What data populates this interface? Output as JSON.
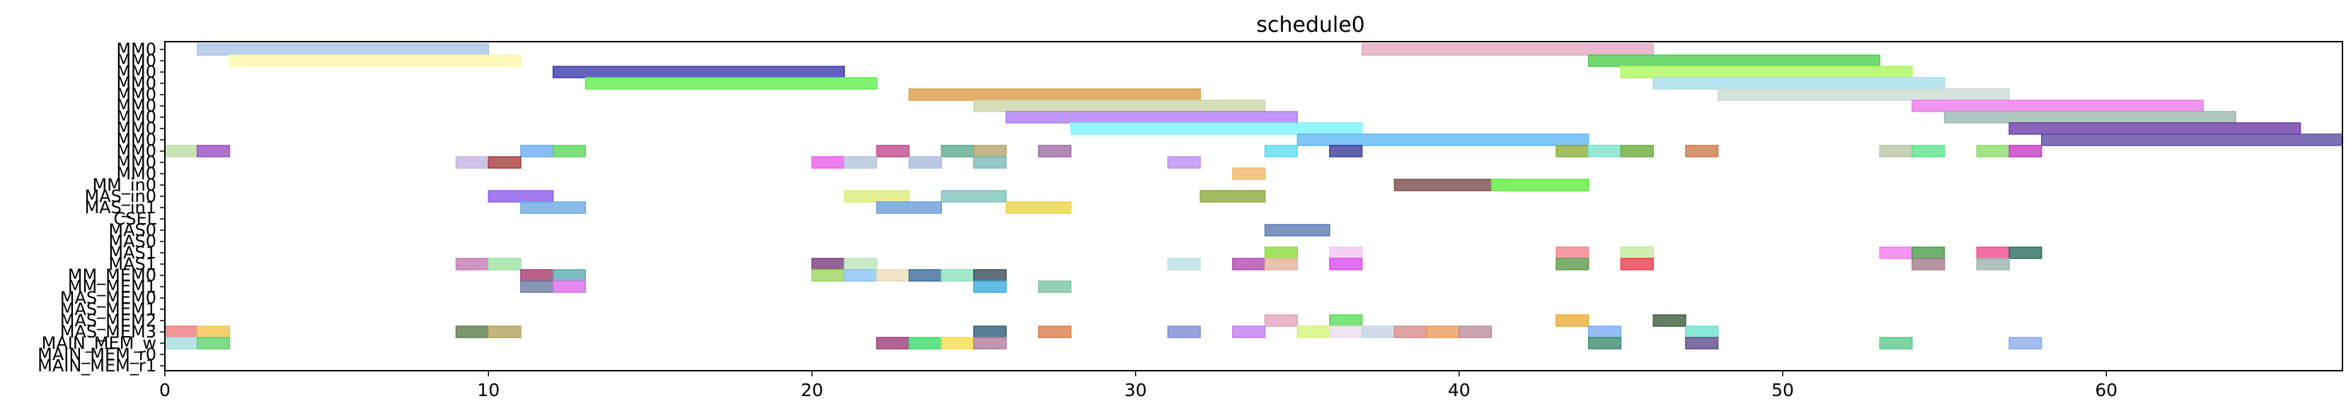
{
  "chart_data": {
    "type": "gantt",
    "title": "schedule0",
    "xlim": [
      0,
      67.3
    ],
    "x_ticks": [
      0,
      10,
      20,
      30,
      40,
      50,
      60
    ],
    "row_labels": [
      "MM0",
      "MM0",
      "MM0",
      "MM0",
      "MM0",
      "MM0",
      "MM0",
      "MM0",
      "MM0",
      "MM0",
      "MM0",
      "MM0",
      "MM_in0",
      "MAS_in0",
      "MAS_in1",
      "CSEL",
      "MAS0",
      "MAS0",
      "MAS1",
      "MAS1",
      "MM_MEM0",
      "MM_MEM1",
      "MAS_MEM0",
      "MAS_MEM1",
      "MAS_MEM2",
      "MAS_MEM3",
      "MAIN_MEM_w",
      "MAIN_MEM_r0",
      "MAIN_MEM_r1"
    ],
    "bars": [
      {
        "row": 0,
        "start": 1,
        "end": 10,
        "color": "#a9c4e6"
      },
      {
        "row": 0,
        "start": 37,
        "end": 46,
        "color": "#e4a8c0"
      },
      {
        "row": 1,
        "start": 2,
        "end": 11,
        "color": "#fdf7a8"
      },
      {
        "row": 1,
        "start": 44,
        "end": 53,
        "color": "#4fcf4f"
      },
      {
        "row": 2,
        "start": 12,
        "end": 21,
        "color": "#3b3bab"
      },
      {
        "row": 2,
        "start": 45,
        "end": 54,
        "color": "#adf75c"
      },
      {
        "row": 3,
        "start": 13,
        "end": 22,
        "color": "#63ef4f"
      },
      {
        "row": 3,
        "start": 46,
        "end": 55,
        "color": "#a9dcec"
      },
      {
        "row": 4,
        "start": 23,
        "end": 32,
        "color": "#dc9c4c"
      },
      {
        "row": 4,
        "start": 48,
        "end": 57,
        "color": "#cbdcd4"
      },
      {
        "row": 5,
        "start": 25,
        "end": 34,
        "color": "#cbd7a6"
      },
      {
        "row": 5,
        "start": 54,
        "end": 63,
        "color": "#ec7cec"
      },
      {
        "row": 6,
        "start": 26,
        "end": 35,
        "color": "#ad7cf4"
      },
      {
        "row": 6,
        "start": 55,
        "end": 64,
        "color": "#9cb8b0"
      },
      {
        "row": 7,
        "start": 28,
        "end": 37,
        "color": "#7cf4fc"
      },
      {
        "row": 7,
        "start": 57,
        "end": 66,
        "color": "#6c3ca8"
      },
      {
        "row": 8,
        "start": 35,
        "end": 44,
        "color": "#5cb8f4"
      },
      {
        "row": 8,
        "start": 58,
        "end": 67.3,
        "color": "#5c4ca4"
      },
      {
        "row": 9,
        "start": 0,
        "end": 1,
        "color": "#b8dca4"
      },
      {
        "row": 9,
        "start": 1,
        "end": 2,
        "color": "#9c4cc0"
      },
      {
        "row": 9,
        "start": 11,
        "end": 12,
        "color": "#6cacf4"
      },
      {
        "row": 9,
        "start": 12,
        "end": 13,
        "color": "#5cd85c"
      },
      {
        "row": 9,
        "start": 22,
        "end": 23,
        "color": "#c04c8c"
      },
      {
        "row": 9,
        "start": 24,
        "end": 25,
        "color": "#5cac8c"
      },
      {
        "row": 9,
        "start": 25,
        "end": 26,
        "color": "#b4a46c"
      },
      {
        "row": 9,
        "start": 27,
        "end": 28,
        "color": "#9c6ca4"
      },
      {
        "row": 9,
        "start": 34,
        "end": 35,
        "color": "#5cdcec"
      },
      {
        "row": 9,
        "start": 36,
        "end": 37,
        "color": "#3c3c9c"
      },
      {
        "row": 9,
        "start": 43,
        "end": 44,
        "color": "#8cac3c"
      },
      {
        "row": 9,
        "start": 44,
        "end": 45,
        "color": "#7ce4cc"
      },
      {
        "row": 9,
        "start": 45,
        "end": 46,
        "color": "#6cac3c"
      },
      {
        "row": 9,
        "start": 47,
        "end": 48,
        "color": "#cc7c4c"
      },
      {
        "row": 9,
        "start": 53,
        "end": 54,
        "color": "#b8c4a4"
      },
      {
        "row": 9,
        "start": 54,
        "end": 55,
        "color": "#5ce48c"
      },
      {
        "row": 9,
        "start": 56,
        "end": 57,
        "color": "#8cdc6c"
      },
      {
        "row": 9,
        "start": 57,
        "end": 58,
        "color": "#c43cc4"
      },
      {
        "row": 10,
        "start": 9,
        "end": 10,
        "color": "#c4b4e4"
      },
      {
        "row": 10,
        "start": 10,
        "end": 11,
        "color": "#a43c3c"
      },
      {
        "row": 10,
        "start": 20,
        "end": 21,
        "color": "#ec5cec"
      },
      {
        "row": 10,
        "start": 21,
        "end": 22,
        "color": "#b4c4dc"
      },
      {
        "row": 10,
        "start": 23,
        "end": 24,
        "color": "#acbcdc"
      },
      {
        "row": 10,
        "start": 25,
        "end": 26,
        "color": "#7cb8b8"
      },
      {
        "row": 10,
        "start": 31,
        "end": 32,
        "color": "#bc8cf4"
      },
      {
        "row": 11,
        "start": 33,
        "end": 34,
        "color": "#f4b86c"
      },
      {
        "row": 12,
        "start": 38,
        "end": 41,
        "color": "#7c4c4c"
      },
      {
        "row": 12,
        "start": 41,
        "end": 44,
        "color": "#5cec3c"
      },
      {
        "row": 13,
        "start": 10,
        "end": 12,
        "color": "#8c5cec"
      },
      {
        "row": 13,
        "start": 21,
        "end": 23,
        "color": "#dcec7c"
      },
      {
        "row": 13,
        "start": 24,
        "end": 26,
        "color": "#7cc4bc"
      },
      {
        "row": 13,
        "start": 32,
        "end": 34,
        "color": "#8caa3c"
      },
      {
        "row": 14,
        "start": 11,
        "end": 13,
        "color": "#6caae4"
      },
      {
        "row": 14,
        "start": 22,
        "end": 24,
        "color": "#6c9cdc"
      },
      {
        "row": 14,
        "start": 26,
        "end": 28,
        "color": "#ecd44c"
      },
      {
        "row": 16,
        "start": 34,
        "end": 36,
        "color": "#5c7cb4"
      },
      {
        "row": 18,
        "start": 34,
        "end": 35,
        "color": "#8cdc3c"
      },
      {
        "row": 18,
        "start": 36,
        "end": 37,
        "color": "#f4c4f4"
      },
      {
        "row": 18,
        "start": 43,
        "end": 44,
        "color": "#f4848c"
      },
      {
        "row": 18,
        "start": 45,
        "end": 46,
        "color": "#c4ec9c"
      },
      {
        "row": 18,
        "start": 53,
        "end": 54,
        "color": "#f47cec"
      },
      {
        "row": 18,
        "start": 54,
        "end": 55,
        "color": "#4c9c4c"
      },
      {
        "row": 18,
        "start": 56,
        "end": 57,
        "color": "#ec4c8c"
      },
      {
        "row": 18,
        "start": 57,
        "end": 58,
        "color": "#2c6c5c"
      },
      {
        "row": 19,
        "start": 9,
        "end": 10,
        "color": "#c47cb4"
      },
      {
        "row": 19,
        "start": 10,
        "end": 11,
        "color": "#9ce4a4"
      },
      {
        "row": 19,
        "start": 20,
        "end": 21,
        "color": "#7c3c7c"
      },
      {
        "row": 19,
        "start": 21,
        "end": 22,
        "color": "#bce4bc"
      },
      {
        "row": 19,
        "start": 31,
        "end": 32,
        "color": "#bce0e4"
      },
      {
        "row": 19,
        "start": 33,
        "end": 34,
        "color": "#b44cb4"
      },
      {
        "row": 19,
        "start": 34,
        "end": 35,
        "color": "#e4b49c"
      },
      {
        "row": 19,
        "start": 36,
        "end": 37,
        "color": "#dc4cec"
      },
      {
        "row": 19,
        "start": 43,
        "end": 44,
        "color": "#5c9c4c"
      },
      {
        "row": 19,
        "start": 45,
        "end": 46,
        "color": "#ec3c4c"
      },
      {
        "row": 19,
        "start": 54,
        "end": 55,
        "color": "#a47c8c"
      },
      {
        "row": 19,
        "start": 56,
        "end": 57,
        "color": "#9cb4ac"
      },
      {
        "row": 20,
        "start": 11,
        "end": 12,
        "color": "#a43c6c"
      },
      {
        "row": 20,
        "start": 12,
        "end": 13,
        "color": "#5cacb4"
      },
      {
        "row": 20,
        "start": 20,
        "end": 21,
        "color": "#9cd45c"
      },
      {
        "row": 20,
        "start": 21,
        "end": 22,
        "color": "#8cc4f4"
      },
      {
        "row": 20,
        "start": 22,
        "end": 23,
        "color": "#ecdcb4"
      },
      {
        "row": 20,
        "start": 23,
        "end": 24,
        "color": "#3c6c9c"
      },
      {
        "row": 20,
        "start": 24,
        "end": 25,
        "color": "#8ce4bc"
      },
      {
        "row": 20,
        "start": 25,
        "end": 26,
        "color": "#3c4c5c"
      },
      {
        "row": 21,
        "start": 11,
        "end": 12,
        "color": "#6c7ca4"
      },
      {
        "row": 21,
        "start": 12,
        "end": 13,
        "color": "#dc6cec"
      },
      {
        "row": 21,
        "start": 25,
        "end": 26,
        "color": "#3cacdc"
      },
      {
        "row": 21,
        "start": 27,
        "end": 28,
        "color": "#7cc4a4"
      },
      {
        "row": 24,
        "start": 34,
        "end": 35,
        "color": "#e4a4bc"
      },
      {
        "row": 24,
        "start": 36,
        "end": 37,
        "color": "#5cdc5c"
      },
      {
        "row": 24,
        "start": 43,
        "end": 44,
        "color": "#ecac3c"
      },
      {
        "row": 24,
        "start": 46,
        "end": 47,
        "color": "#3c5c3c"
      },
      {
        "row": 25,
        "start": 0,
        "end": 1,
        "color": "#ec7c7c"
      },
      {
        "row": 25,
        "start": 1,
        "end": 2,
        "color": "#f4c44c"
      },
      {
        "row": 25,
        "start": 9,
        "end": 10,
        "color": "#5c7c4c"
      },
      {
        "row": 25,
        "start": 10,
        "end": 11,
        "color": "#b4a45c"
      },
      {
        "row": 25,
        "start": 25,
        "end": 26,
        "color": "#2c5c7c"
      },
      {
        "row": 25,
        "start": 27,
        "end": 28,
        "color": "#dc7c4c"
      },
      {
        "row": 25,
        "start": 31,
        "end": 32,
        "color": "#7c8cd4"
      },
      {
        "row": 25,
        "start": 33,
        "end": 34,
        "color": "#c47cf4"
      },
      {
        "row": 25,
        "start": 35,
        "end": 36,
        "color": "#d4f47c"
      },
      {
        "row": 25,
        "start": 36,
        "end": 37,
        "color": "#ecdcec"
      },
      {
        "row": 25,
        "start": 37,
        "end": 38,
        "color": "#c4d4e4"
      },
      {
        "row": 25,
        "start": 38,
        "end": 39,
        "color": "#d48c8c"
      },
      {
        "row": 25,
        "start": 39,
        "end": 40,
        "color": "#ec9c5c"
      },
      {
        "row": 25,
        "start": 40,
        "end": 41,
        "color": "#bc8c9c"
      },
      {
        "row": 25,
        "start": 44,
        "end": 45,
        "color": "#7cacf4"
      },
      {
        "row": 25,
        "start": 47,
        "end": 48,
        "color": "#6ce4cc"
      },
      {
        "row": 26,
        "start": 0,
        "end": 1,
        "color": "#a4dcdc"
      },
      {
        "row": 26,
        "start": 1,
        "end": 2,
        "color": "#5cd46c"
      },
      {
        "row": 26,
        "start": 22,
        "end": 23,
        "color": "#9c3c7c"
      },
      {
        "row": 26,
        "start": 23,
        "end": 24,
        "color": "#3cdc6c"
      },
      {
        "row": 26,
        "start": 24,
        "end": 25,
        "color": "#f4dc4c"
      },
      {
        "row": 26,
        "start": 25,
        "end": 26,
        "color": "#b47c9c"
      },
      {
        "row": 26,
        "start": 44,
        "end": 45,
        "color": "#3c8c6c"
      },
      {
        "row": 26,
        "start": 47,
        "end": 48,
        "color": "#5c4c8c"
      },
      {
        "row": 26,
        "start": 53,
        "end": 54,
        "color": "#5ccc8c"
      },
      {
        "row": 26,
        "start": 57,
        "end": 58,
        "color": "#8cacec"
      }
    ]
  }
}
